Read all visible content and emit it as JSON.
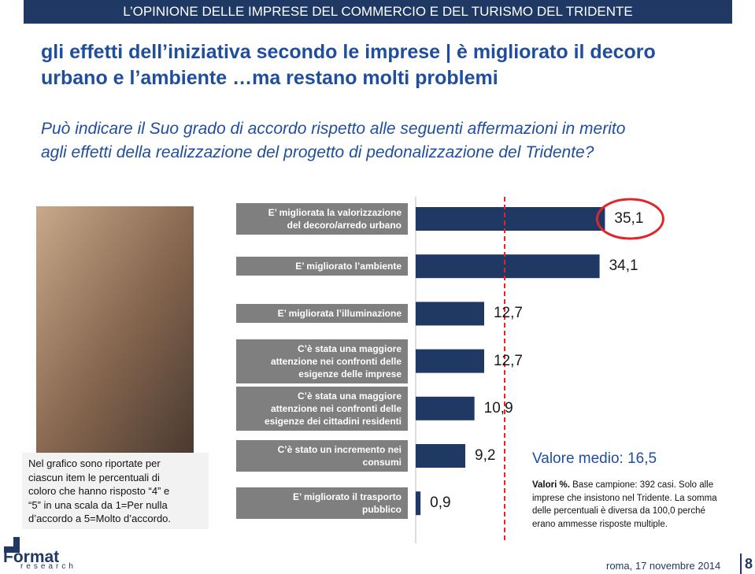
{
  "header": {
    "title": "L’OPINIONE DELLE IMPRESE DEL COMMERCIO E DEL TURISMO DEL TRIDENTE"
  },
  "headline": [
    "gli effetti dell’iniziativa secondo le imprese | è migliorato il decoro",
    "urbano e l’ambiente …ma restano molti problemi"
  ],
  "question": [
    "Può indicare il Suo grado di accordo rispetto alle seguenti affermazioni in merito",
    "agli effetti della realizzazione del progetto di pedonalizzazione del Tridente?"
  ],
  "chart_data": {
    "type": "bar",
    "orientation": "horizontal",
    "categories": [
      "E’ migliorata la valorizzazione\ndel decoro/arredo urbano",
      "E’ migliorato l’ambiente",
      "E’ migliorata l’illuminazione",
      "C’è stata una maggiore\nattenzione nei confronti delle\nesigenze delle imprese",
      "C’è stata una maggiore\nattenzione nei confronti delle\nesigenze dei cittadini residenti",
      "C’è stato un incremento nei\nconsumi",
      "E’ migliorato il trasporto\npubblico"
    ],
    "values": [
      35.1,
      34.1,
      12.7,
      12.7,
      10.9,
      9.2,
      0.9
    ],
    "value_labels": [
      "35,1",
      "34,1",
      "12,7",
      "12,7",
      "10,9",
      "9,2",
      "0,9"
    ],
    "color": "#1f3864",
    "average": 16.5,
    "average_label": "Valore medio: 16,5",
    "highlight": [
      0
    ],
    "highlight_color": "#e0252b"
  },
  "left_note": [
    "Nel grafico sono riportate per",
    "ciascun item le percentuali di",
    "coloro che hanno risposto “4” e",
    "“5” in una scala da 1=Per nulla",
    "d’accordo a 5=Molto d’accordo."
  ],
  "right_note": {
    "bold": "Valori %.",
    "lines": [
      "Base campione: 392 casi. Solo alle",
      "imprese che insistono nel Tridente. La somma",
      "delle percentuali è diversa da 100,0 perché",
      "erano ammesse risposte multiple."
    ]
  },
  "footer": {
    "logo": [
      "Format",
      "research"
    ],
    "date": "roma, 17 novembre 2014",
    "page": "8"
  }
}
